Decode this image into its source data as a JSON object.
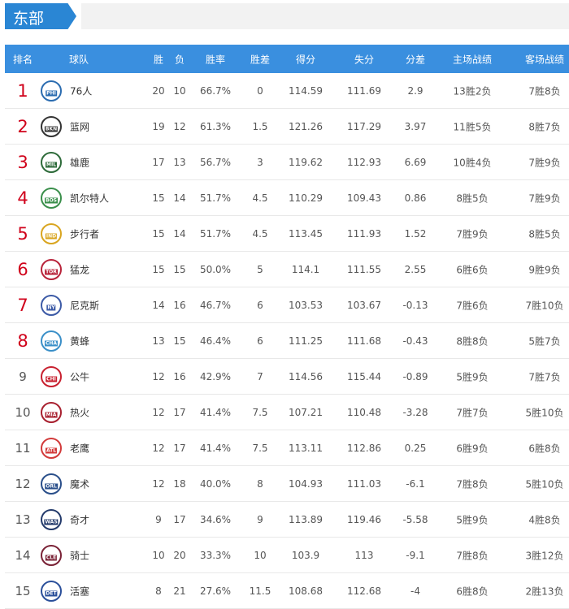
{
  "header": {
    "title": "东部"
  },
  "table": {
    "columns": [
      "排名",
      "球队",
      "胜",
      "负",
      "胜率",
      "胜差",
      "得分",
      "失分",
      "分差",
      "主场战绩",
      "客场战绩"
    ],
    "rows": [
      {
        "rank": "1",
        "rank_color": "#d0021b",
        "logo": "PHI",
        "logo_color": "#2b6cb0",
        "team": "76人",
        "cells": [
          "20",
          "10",
          "66.7%",
          "0",
          "114.59",
          "111.69",
          "2.9",
          "13胜2负",
          "7胜8负"
        ]
      },
      {
        "rank": "2",
        "rank_color": "#d0021b",
        "logo": "BKN",
        "logo_color": "#333333",
        "team": "篮网",
        "cells": [
          "19",
          "12",
          "61.3%",
          "1.5",
          "121.26",
          "117.29",
          "3.97",
          "11胜5负",
          "8胜7负"
        ]
      },
      {
        "rank": "3",
        "rank_color": "#d0021b",
        "logo": "MIL",
        "logo_color": "#2e6b3a",
        "team": "雄鹿",
        "cells": [
          "17",
          "13",
          "56.7%",
          "3",
          "119.62",
          "112.93",
          "6.69",
          "10胜4负",
          "7胜9负"
        ]
      },
      {
        "rank": "4",
        "rank_color": "#d0021b",
        "logo": "BOS",
        "logo_color": "#3a8f4b",
        "team": "凯尔特人",
        "cells": [
          "15",
          "14",
          "51.7%",
          "4.5",
          "110.29",
          "109.43",
          "0.86",
          "8胜5负",
          "7胜9负"
        ]
      },
      {
        "rank": "5",
        "rank_color": "#d0021b",
        "logo": "IND",
        "logo_color": "#d9a520",
        "team": "步行者",
        "cells": [
          "15",
          "14",
          "51.7%",
          "4.5",
          "113.45",
          "111.93",
          "1.52",
          "7胜9负",
          "8胜5负"
        ]
      },
      {
        "rank": "6",
        "rank_color": "#d0021b",
        "logo": "TOR",
        "logo_color": "#b8233a",
        "team": "猛龙",
        "cells": [
          "15",
          "15",
          "50.0%",
          "5",
          "114.1",
          "111.55",
          "2.55",
          "6胜6负",
          "9胜9负"
        ]
      },
      {
        "rank": "7",
        "rank_color": "#d0021b",
        "logo": "NY",
        "logo_color": "#3c5aa6",
        "team": "尼克斯",
        "cells": [
          "14",
          "16",
          "46.7%",
          "6",
          "103.53",
          "103.67",
          "-0.13",
          "7胜6负",
          "7胜10负"
        ]
      },
      {
        "rank": "8",
        "rank_color": "#d0021b",
        "logo": "CHA",
        "logo_color": "#3a8fc8",
        "team": "黄蜂",
        "cells": [
          "13",
          "15",
          "46.4%",
          "6",
          "111.25",
          "111.68",
          "-0.43",
          "8胜8负",
          "5胜7负"
        ]
      },
      {
        "rank": "9",
        "rank_color": "#555555",
        "logo": "CHI",
        "logo_color": "#c8202f",
        "team": "公牛",
        "cells": [
          "12",
          "16",
          "42.9%",
          "7",
          "114.56",
          "115.44",
          "-0.89",
          "5胜9负",
          "7胜7负"
        ]
      },
      {
        "rank": "10",
        "rank_color": "#555555",
        "logo": "MIA",
        "logo_color": "#a8202f",
        "team": "热火",
        "cells": [
          "12",
          "17",
          "41.4%",
          "7.5",
          "107.21",
          "110.48",
          "-3.28",
          "7胜7负",
          "5胜10负"
        ]
      },
      {
        "rank": "11",
        "rank_color": "#555555",
        "logo": "ATL",
        "logo_color": "#d23a3a",
        "team": "老鹰",
        "cells": [
          "12",
          "17",
          "41.4%",
          "7.5",
          "113.11",
          "112.86",
          "0.25",
          "6胜9负",
          "6胜8负"
        ]
      },
      {
        "rank": "12",
        "rank_color": "#555555",
        "logo": "ORL",
        "logo_color": "#2a4f8a",
        "team": "魔术",
        "cells": [
          "12",
          "18",
          "40.0%",
          "8",
          "104.93",
          "111.03",
          "-6.1",
          "7胜8负",
          "5胜10负"
        ]
      },
      {
        "rank": "13",
        "rank_color": "#555555",
        "logo": "WAS",
        "logo_color": "#233a6b",
        "team": "奇才",
        "cells": [
          "9",
          "17",
          "34.6%",
          "9",
          "113.89",
          "119.46",
          "-5.58",
          "5胜9负",
          "4胜8负"
        ]
      },
      {
        "rank": "14",
        "rank_color": "#555555",
        "logo": "CLE",
        "logo_color": "#7a2236",
        "team": "骑士",
        "cells": [
          "10",
          "20",
          "33.3%",
          "10",
          "103.9",
          "113",
          "-9.1",
          "7胜8负",
          "3胜12负"
        ]
      },
      {
        "rank": "15",
        "rank_color": "#555555",
        "logo": "DET",
        "logo_color": "#2a4f9a",
        "team": "活塞",
        "cells": [
          "8",
          "21",
          "27.6%",
          "11.5",
          "108.68",
          "112.68",
          "-4",
          "6胜8负",
          "2胜13负"
        ]
      }
    ]
  }
}
